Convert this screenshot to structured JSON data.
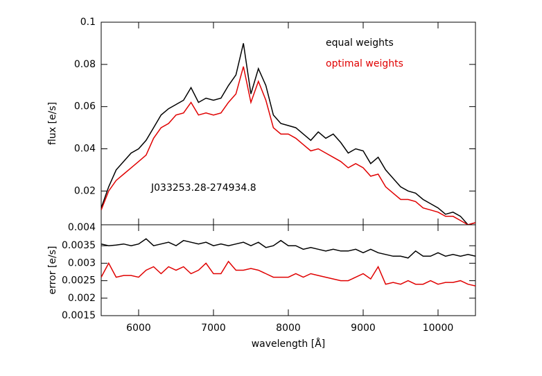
{
  "chart_data": [
    {
      "type": "line",
      "ylabel": "flux [e/s]",
      "annotation": "J033253.28-274934.8",
      "xlim": [
        5500,
        10500
      ],
      "xticks": [
        6000,
        7000,
        8000,
        9000,
        10000
      ],
      "ylim": [
        0.004,
        0.1
      ],
      "yticks": [
        0.004,
        0.02,
        0.04,
        0.06,
        0.08,
        0.1
      ],
      "x": [
        5500,
        5600,
        5700,
        5800,
        5900,
        6000,
        6100,
        6200,
        6300,
        6400,
        6500,
        6600,
        6700,
        6800,
        6900,
        7000,
        7100,
        7200,
        7300,
        7400,
        7500,
        7600,
        7700,
        7800,
        7900,
        8000,
        8100,
        8200,
        8300,
        8400,
        8500,
        8600,
        8700,
        8800,
        8900,
        9000,
        9100,
        9200,
        9300,
        9400,
        9500,
        9600,
        9700,
        9800,
        9900,
        10000,
        10100,
        10200,
        10300,
        10400,
        10500
      ],
      "series": [
        {
          "name": "equal weights",
          "color": "#000000",
          "values": [
            0.012,
            0.022,
            0.03,
            0.034,
            0.038,
            0.04,
            0.044,
            0.05,
            0.056,
            0.059,
            0.061,
            0.063,
            0.069,
            0.062,
            0.064,
            0.063,
            0.064,
            0.07,
            0.075,
            0.09,
            0.066,
            0.078,
            0.07,
            0.056,
            0.052,
            0.051,
            0.05,
            0.047,
            0.044,
            0.048,
            0.045,
            0.047,
            0.043,
            0.038,
            0.04,
            0.039,
            0.033,
            0.036,
            0.03,
            0.026,
            0.022,
            0.02,
            0.019,
            0.016,
            0.014,
            0.012,
            0.009,
            0.01,
            0.008,
            0.004,
            0.005
          ]
        },
        {
          "name": "optimal weights",
          "color": "#e00000",
          "values": [
            0.011,
            0.02,
            0.025,
            0.028,
            0.031,
            0.034,
            0.037,
            0.045,
            0.05,
            0.052,
            0.056,
            0.057,
            0.062,
            0.056,
            0.057,
            0.056,
            0.057,
            0.062,
            0.066,
            0.079,
            0.062,
            0.072,
            0.063,
            0.05,
            0.047,
            0.047,
            0.045,
            0.042,
            0.039,
            0.04,
            0.038,
            0.036,
            0.034,
            0.031,
            0.033,
            0.031,
            0.027,
            0.028,
            0.022,
            0.019,
            0.016,
            0.016,
            0.015,
            0.012,
            0.011,
            0.01,
            0.008,
            0.008,
            0.006,
            0.004,
            0.005
          ]
        }
      ]
    },
    {
      "type": "line",
      "ylabel": "error [e/s]",
      "xlabel": "wavelength [Å]",
      "xlim": [
        5500,
        10500
      ],
      "xticks": [
        6000,
        7000,
        8000,
        9000,
        10000
      ],
      "ylim": [
        0.0015,
        0.0041
      ],
      "yticks": [
        0.0015,
        0.002,
        0.0025,
        0.003,
        0.0035
      ],
      "x": [
        5500,
        5600,
        5700,
        5800,
        5900,
        6000,
        6100,
        6200,
        6300,
        6400,
        6500,
        6600,
        6700,
        6800,
        6900,
        7000,
        7100,
        7200,
        7300,
        7400,
        7500,
        7600,
        7700,
        7800,
        7900,
        8000,
        8100,
        8200,
        8300,
        8400,
        8500,
        8600,
        8700,
        8800,
        8900,
        9000,
        9100,
        9200,
        9300,
        9400,
        9500,
        9600,
        9700,
        9800,
        9900,
        10000,
        10100,
        10200,
        10300,
        10400,
        10500
      ],
      "series": [
        {
          "name": "equal weights",
          "color": "#000000",
          "values": [
            0.00355,
            0.0035,
            0.00352,
            0.00355,
            0.0035,
            0.00355,
            0.0037,
            0.0035,
            0.00355,
            0.0036,
            0.0035,
            0.00365,
            0.0036,
            0.00355,
            0.0036,
            0.0035,
            0.00355,
            0.0035,
            0.00355,
            0.0036,
            0.0035,
            0.0036,
            0.00345,
            0.0035,
            0.00365,
            0.0035,
            0.0035,
            0.0034,
            0.00345,
            0.0034,
            0.00335,
            0.0034,
            0.00335,
            0.00335,
            0.0034,
            0.0033,
            0.0034,
            0.0033,
            0.00325,
            0.0032,
            0.0032,
            0.00315,
            0.00335,
            0.0032,
            0.0032,
            0.0033,
            0.0032,
            0.00325,
            0.0032,
            0.00325,
            0.0032
          ]
        },
        {
          "name": "optimal weights",
          "color": "#e00000",
          "values": [
            0.0026,
            0.003,
            0.0026,
            0.00265,
            0.00265,
            0.0026,
            0.0028,
            0.0029,
            0.0027,
            0.0029,
            0.0028,
            0.0029,
            0.0027,
            0.0028,
            0.003,
            0.0027,
            0.0027,
            0.00305,
            0.0028,
            0.0028,
            0.00285,
            0.0028,
            0.0027,
            0.0026,
            0.0026,
            0.0026,
            0.0027,
            0.0026,
            0.0027,
            0.00265,
            0.0026,
            0.00255,
            0.0025,
            0.0025,
            0.0026,
            0.0027,
            0.00255,
            0.0029,
            0.0024,
            0.00245,
            0.0024,
            0.0025,
            0.0024,
            0.0024,
            0.0025,
            0.0024,
            0.00245,
            0.00245,
            0.0025,
            0.0024,
            0.00235
          ]
        }
      ]
    }
  ]
}
